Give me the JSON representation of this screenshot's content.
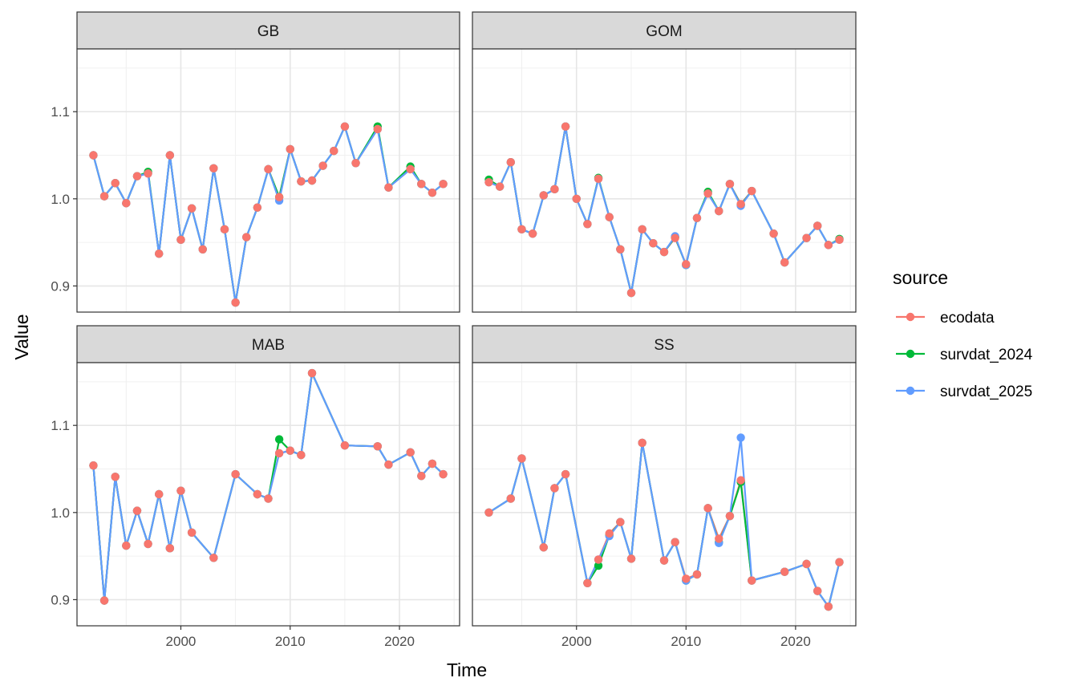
{
  "chart_data": {
    "type": "line",
    "xlabel": "Time",
    "ylabel": "Value",
    "xlim": [
      1990.5,
      2025.5
    ],
    "ylim": [
      0.87,
      1.172
    ],
    "x_ticks": [
      2000,
      2010,
      2020
    ],
    "y_ticks": [
      0.9,
      1.0,
      1.1
    ],
    "x_tick_labels": [
      "2000",
      "2010",
      "2020"
    ],
    "y_tick_labels": [
      "0.9",
      "1.0",
      "1.1"
    ],
    "grid": true,
    "legend": {
      "title": "source",
      "position": "right",
      "entries": [
        "ecodata",
        "survdat_2024",
        "survdat_2025"
      ]
    },
    "colors": {
      "ecodata": "#F8766D",
      "survdat_2024": "#00BA38",
      "survdat_2025": "#619CFF"
    },
    "panels": [
      {
        "name": "GB",
        "series": [
          {
            "name": "ecodata",
            "x": [
              1992,
              1993,
              1994,
              1995,
              1996,
              1997,
              1998,
              1999,
              2000,
              2001,
              2002,
              2003,
              2004,
              2005,
              2006,
              2007,
              2008,
              2009,
              2010,
              2011,
              2012,
              2013,
              2014,
              2015,
              2016,
              2018,
              2019,
              2021,
              2022,
              2023,
              2024
            ],
            "values": [
              1.05,
              1.003,
              1.018,
              0.995,
              1.026,
              1.029,
              0.937,
              1.05,
              0.953,
              0.989,
              0.942,
              1.035,
              0.965,
              0.881,
              0.956,
              0.99,
              1.034,
              1.002,
              1.057,
              1.02,
              1.021,
              1.038,
              1.055,
              1.083,
              1.041,
              1.08,
              1.013,
              1.034,
              1.017,
              1.007,
              1.017
            ]
          },
          {
            "name": "survdat_2024",
            "x": [
              1992,
              1993,
              1994,
              1995,
              1996,
              1997,
              1998,
              1999,
              2000,
              2001,
              2002,
              2003,
              2004,
              2005,
              2006,
              2007,
              2008,
              2009,
              2010,
              2011,
              2012,
              2013,
              2014,
              2015,
              2016,
              2018,
              2019,
              2021,
              2022,
              2023,
              2024
            ],
            "values": [
              1.05,
              1.003,
              1.018,
              0.995,
              1.026,
              1.031,
              0.937,
              1.05,
              0.953,
              0.989,
              0.942,
              1.035,
              0.965,
              0.881,
              0.956,
              0.99,
              1.034,
              1.002,
              1.057,
              1.02,
              1.021,
              1.038,
              1.055,
              1.083,
              1.041,
              1.083,
              1.013,
              1.037,
              1.017,
              1.007,
              1.017
            ]
          },
          {
            "name": "survdat_2025",
            "x": [
              1992,
              1993,
              1994,
              1995,
              1996,
              1997,
              1998,
              1999,
              2000,
              2001,
              2002,
              2003,
              2004,
              2005,
              2006,
              2007,
              2008,
              2009,
              2010,
              2011,
              2012,
              2013,
              2014,
              2015,
              2016,
              2018,
              2019,
              2021,
              2022,
              2023,
              2024
            ],
            "values": [
              1.05,
              1.003,
              1.018,
              0.995,
              1.026,
              1.029,
              0.937,
              1.05,
              0.953,
              0.989,
              0.942,
              1.035,
              0.965,
              0.881,
              0.956,
              0.99,
              1.034,
              0.998,
              1.057,
              1.02,
              1.021,
              1.038,
              1.055,
              1.083,
              1.041,
              1.08,
              1.013,
              1.034,
              1.017,
              1.007,
              1.017
            ]
          }
        ]
      },
      {
        "name": "GOM",
        "series": [
          {
            "name": "ecodata",
            "x": [
              1992,
              1993,
              1994,
              1995,
              1996,
              1997,
              1998,
              1999,
              2000,
              2001,
              2002,
              2003,
              2004,
              2005,
              2006,
              2007,
              2008,
              2009,
              2010,
              2011,
              2012,
              2013,
              2014,
              2015,
              2016,
              2018,
              2019,
              2021,
              2022,
              2023,
              2024
            ],
            "values": [
              1.019,
              1.014,
              1.042,
              0.965,
              0.96,
              1.004,
              1.011,
              1.083,
              1.0,
              0.971,
              1.023,
              0.979,
              0.942,
              0.892,
              0.965,
              0.949,
              0.939,
              0.955,
              0.925,
              0.978,
              1.006,
              0.986,
              1.017,
              0.994,
              1.009,
              0.96,
              0.927,
              0.955,
              0.969,
              0.947,
              0.953
            ]
          },
          {
            "name": "survdat_2024",
            "x": [
              1992,
              1993,
              1994,
              1995,
              1996,
              1997,
              1998,
              1999,
              2000,
              2001,
              2002,
              2003,
              2004,
              2005,
              2006,
              2007,
              2008,
              2009,
              2010,
              2011,
              2012,
              2013,
              2014,
              2015,
              2016,
              2018,
              2019,
              2021,
              2022,
              2023,
              2024
            ],
            "values": [
              1.022,
              1.014,
              1.042,
              0.965,
              0.96,
              1.004,
              1.011,
              1.083,
              1.0,
              0.971,
              1.024,
              0.979,
              0.942,
              0.892,
              0.965,
              0.949,
              0.939,
              0.956,
              0.924,
              0.978,
              1.008,
              0.986,
              1.017,
              0.993,
              1.009,
              0.96,
              0.927,
              0.955,
              0.969,
              0.947,
              0.954
            ]
          },
          {
            "name": "survdat_2025",
            "x": [
              1992,
              1993,
              1994,
              1995,
              1996,
              1997,
              1998,
              1999,
              2000,
              2001,
              2002,
              2003,
              2004,
              2005,
              2006,
              2007,
              2008,
              2009,
              2010,
              2011,
              2012,
              2013,
              2014,
              2015,
              2016,
              2018,
              2019,
              2021,
              2022,
              2023,
              2024
            ],
            "values": [
              1.019,
              1.014,
              1.042,
              0.965,
              0.96,
              1.004,
              1.011,
              1.083,
              1.0,
              0.971,
              1.023,
              0.979,
              0.942,
              0.892,
              0.965,
              0.949,
              0.939,
              0.957,
              0.924,
              0.978,
              1.006,
              0.986,
              1.017,
              0.992,
              1.009,
              0.96,
              0.927,
              0.955,
              0.969,
              0.947,
              0.953
            ]
          }
        ]
      },
      {
        "name": "MAB",
        "series": [
          {
            "name": "ecodata",
            "x": [
              1992,
              1993,
              1994,
              1995,
              1996,
              1997,
              1998,
              1999,
              2000,
              2001,
              2003,
              2005,
              2007,
              2008,
              2009,
              2010,
              2011,
              2012,
              2015,
              2018,
              2019,
              2021,
              2022,
              2023,
              2024
            ],
            "values": [
              1.054,
              0.899,
              1.041,
              0.962,
              1.002,
              0.964,
              1.021,
              0.959,
              1.025,
              0.977,
              0.948,
              1.044,
              1.021,
              1.016,
              1.068,
              1.071,
              1.066,
              1.16,
              1.077,
              1.076,
              1.055,
              1.069,
              1.042,
              1.056,
              1.044
            ]
          },
          {
            "name": "survdat_2024",
            "x": [
              1992,
              1993,
              1994,
              1995,
              1996,
              1997,
              1998,
              1999,
              2000,
              2001,
              2003,
              2005,
              2007,
              2008,
              2009,
              2010,
              2011,
              2012,
              2015,
              2018,
              2019,
              2021,
              2022,
              2023,
              2024
            ],
            "values": [
              1.054,
              0.899,
              1.041,
              0.962,
              1.002,
              0.964,
              1.021,
              0.959,
              1.025,
              0.977,
              0.948,
              1.044,
              1.021,
              1.016,
              1.084,
              1.071,
              1.066,
              1.16,
              1.077,
              1.076,
              1.055,
              1.069,
              1.042,
              1.056,
              1.044
            ]
          },
          {
            "name": "survdat_2025",
            "x": [
              1992,
              1993,
              1994,
              1995,
              1996,
              1997,
              1998,
              1999,
              2000,
              2001,
              2003,
              2005,
              2007,
              2008,
              2009,
              2010,
              2011,
              2012,
              2015,
              2018,
              2019,
              2021,
              2022,
              2023,
              2024
            ],
            "values": [
              1.054,
              0.899,
              1.041,
              0.962,
              1.002,
              0.964,
              1.021,
              0.959,
              1.025,
              0.977,
              0.948,
              1.044,
              1.021,
              1.016,
              1.068,
              1.071,
              1.066,
              1.16,
              1.077,
              1.076,
              1.055,
              1.069,
              1.042,
              1.056,
              1.044
            ]
          }
        ]
      },
      {
        "name": "SS",
        "series": [
          {
            "name": "ecodata",
            "x": [
              1992,
              1994,
              1995,
              1997,
              1998,
              1999,
              2001,
              2002,
              2003,
              2004,
              2005,
              2006,
              2008,
              2009,
              2010,
              2011,
              2012,
              2013,
              2014,
              2015,
              2016,
              2019,
              2021,
              2022,
              2023,
              2024
            ],
            "values": [
              1.0,
              1.016,
              1.062,
              0.96,
              1.028,
              1.044,
              0.919,
              0.946,
              0.976,
              0.989,
              0.947,
              1.08,
              0.945,
              0.966,
              0.924,
              0.929,
              1.005,
              0.97,
              0.996,
              1.037,
              0.922,
              0.932,
              0.941,
              0.91,
              0.892,
              0.943
            ]
          },
          {
            "name": "survdat_2024",
            "x": [
              1992,
              1994,
              1995,
              1997,
              1998,
              1999,
              2001,
              2002,
              2003,
              2004,
              2005,
              2006,
              2008,
              2009,
              2010,
              2011,
              2012,
              2013,
              2014,
              2015,
              2016,
              2019,
              2021,
              2022,
              2023,
              2024
            ],
            "values": [
              1.0,
              1.016,
              1.062,
              0.96,
              1.028,
              1.044,
              0.919,
              0.939,
              0.974,
              0.989,
              0.947,
              1.08,
              0.945,
              0.966,
              0.922,
              0.929,
              1.005,
              0.966,
              0.996,
              1.035,
              0.922,
              0.932,
              0.941,
              0.91,
              0.892,
              0.943
            ]
          },
          {
            "name": "survdat_2025",
            "x": [
              1992,
              1994,
              1995,
              1997,
              1998,
              1999,
              2001,
              2002,
              2003,
              2004,
              2005,
              2006,
              2008,
              2009,
              2010,
              2011,
              2012,
              2013,
              2014,
              2015,
              2016,
              2019,
              2021,
              2022,
              2023,
              2024
            ],
            "values": [
              1.0,
              1.016,
              1.062,
              0.96,
              1.028,
              1.044,
              0.919,
              0.946,
              0.973,
              0.989,
              0.947,
              1.08,
              0.945,
              0.966,
              0.922,
              0.929,
              1.005,
              0.965,
              0.996,
              1.086,
              0.922,
              0.932,
              0.941,
              0.91,
              0.892,
              0.943
            ]
          }
        ]
      }
    ]
  }
}
